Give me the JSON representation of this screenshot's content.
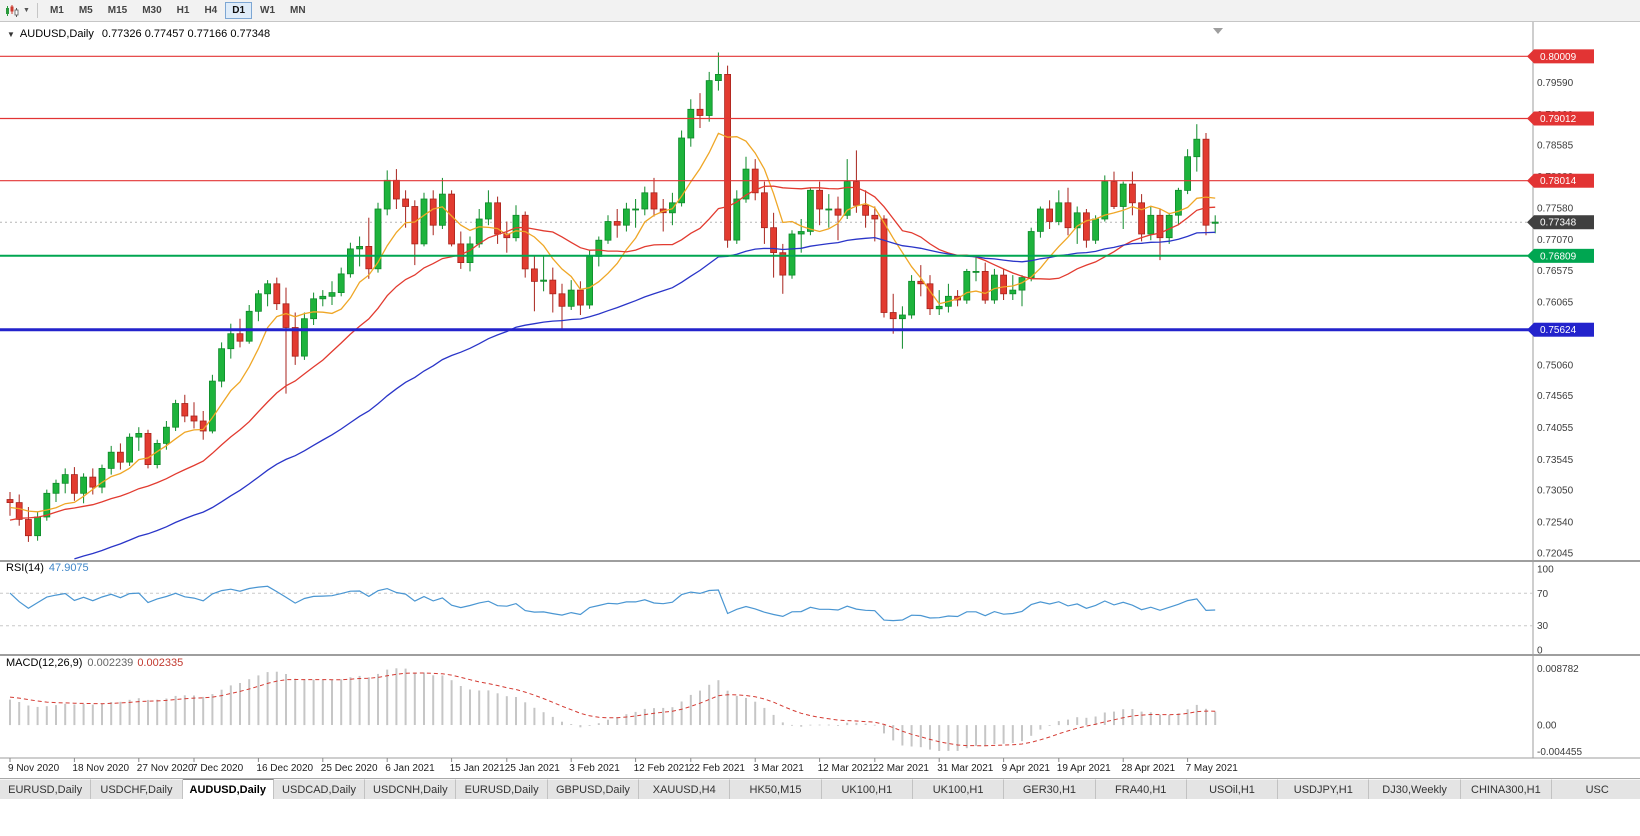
{
  "toolbar": {
    "timeframes": [
      "M1",
      "M5",
      "M15",
      "M30",
      "H1",
      "H4",
      "D1",
      "W1",
      "MN"
    ],
    "active_timeframe": "D1"
  },
  "chart": {
    "collapse_icon": "▼",
    "symbol_label": "AUDUSD,Daily",
    "ohlc_label": "0.77326 0.77457 0.77166 0.77348"
  },
  "rsi": {
    "label": "RSI(14)",
    "value": "47.9075",
    "axis_labels": [
      "100",
      "70",
      "30",
      "0"
    ],
    "levels": [
      70,
      30
    ],
    "line_color": "#4a96d2"
  },
  "macd": {
    "label": "MACD(12,26,9)",
    "value_main": "0.002239",
    "value_signal": "0.002335",
    "axis_top": "0.008782",
    "axis_zero": "0.00",
    "axis_bottom": "-0.004455",
    "hist_color": "#c6c6c6",
    "signal_color": "#d43b33"
  },
  "levels": [
    {
      "value": 0.80009,
      "label": "0.80009",
      "color": "#e23434",
      "width": 1.2
    },
    {
      "value": 0.79012,
      "label": "0.79012",
      "color": "#e23434",
      "width": 1.2
    },
    {
      "value": 0.78014,
      "label": "0.78014",
      "color": "#e23434",
      "width": 1.2
    },
    {
      "value": 0.76809,
      "label": "0.76809",
      "color": "#00a651",
      "width": 2
    },
    {
      "value": 0.75624,
      "label": "0.75624",
      "color": "#2323cc",
      "width": 3
    }
  ],
  "current_price": {
    "value": 0.77348,
    "label": "0.77348",
    "box_color": "#404040"
  },
  "price_axis": {
    "labels": [
      "0.79590",
      "0.79080",
      "0.78585",
      "0.78080",
      "0.77580",
      "0.77070",
      "0.76575",
      "0.76065",
      "0.75570",
      "0.75060",
      "0.74565",
      "0.74055",
      "0.73545",
      "0.73050",
      "0.72540",
      "0.72045"
    ]
  },
  "tabs": {
    "active_index": 2,
    "items": [
      "EURUSD,Daily",
      "USDCHF,Daily",
      "AUDUSD,Daily",
      "USDCAD,Daily",
      "USDCNH,Daily",
      "EURUSD,Daily",
      "GBPUSD,Daily",
      "XAUUSD,H4",
      "HK50,M15",
      "UK100,H1",
      "UK100,H1",
      "GER30,H1",
      "FRA40,H1",
      "USOil,H1",
      "USDJPY,H1",
      "DJ30,Weekly",
      "CHINA300,H1",
      "USC"
    ]
  },
  "chart_data": {
    "type": "candlestick",
    "symbol": "AUDUSD",
    "timeframe": "Daily",
    "price_range": [
      0.7193,
      0.8056
    ],
    "colors": {
      "bull": "#1db33c",
      "bull_border": "#0e8a2a",
      "bear": "#e23b30",
      "bear_border": "#a8231c"
    },
    "moving_averages": [
      {
        "period": 7,
        "type": "sma",
        "color": "#efa727"
      },
      {
        "period": 20,
        "type": "sma",
        "color": "#e23b30"
      },
      {
        "period": 55,
        "type": "ema",
        "color": "#2a35c8"
      }
    ],
    "rsi_period": 14,
    "macd_params": [
      12,
      26,
      9
    ],
    "macd_range": [
      -0.0045,
      0.0095
    ],
    "ma_seed": [
      0.704,
      0.702,
      0.7,
      0.701,
      0.703,
      0.705,
      0.707,
      0.706,
      0.704,
      0.706,
      0.708,
      0.71,
      0.709,
      0.707,
      0.709,
      0.711,
      0.713,
      0.715,
      0.716,
      0.717,
      0.718,
      0.72,
      0.722,
      0.724,
      0.723,
      0.722,
      0.724,
      0.726,
      0.727,
      0.726,
      0.725,
      0.726,
      0.727,
      0.728,
      0.727,
      0.726,
      0.727,
      0.728,
      0.729,
      0.7285
    ],
    "date_labels": [
      {
        "t": "9 Nov 2020",
        "i": 0
      },
      {
        "t": "18 Nov 2020",
        "i": 7
      },
      {
        "t": "27 Nov 2020",
        "i": 14
      },
      {
        "t": "7 Dec 2020",
        "i": 20
      },
      {
        "t": "16 Dec 2020",
        "i": 27
      },
      {
        "t": "25 Dec 2020",
        "i": 34
      },
      {
        "t": "6 Jan 2021",
        "i": 41
      },
      {
        "t": "15 Jan 2021",
        "i": 48
      },
      {
        "t": "25 Jan 2021",
        "i": 54
      },
      {
        "t": "3 Feb 2021",
        "i": 61
      },
      {
        "t": "12 Feb 2021",
        "i": 68
      },
      {
        "t": "22 Feb 2021",
        "i": 74
      },
      {
        "t": "3 Mar 2021",
        "i": 81
      },
      {
        "t": "12 Mar 2021",
        "i": 88
      },
      {
        "t": "22 Mar 2021",
        "i": 94
      },
      {
        "t": "31 Mar 2021",
        "i": 101
      },
      {
        "t": "9 Apr 2021",
        "i": 108
      },
      {
        "t": "19 Apr 2021",
        "i": 114
      },
      {
        "t": "28 Apr 2021",
        "i": 121
      },
      {
        "t": "7 May 2021",
        "i": 128
      }
    ],
    "candles": [
      [
        0.729,
        0.7302,
        0.7264,
        0.7285
      ],
      [
        0.7285,
        0.7298,
        0.7248,
        0.7258
      ],
      [
        0.7258,
        0.7278,
        0.7222,
        0.7232
      ],
      [
        0.7232,
        0.727,
        0.7224,
        0.7262
      ],
      [
        0.7262,
        0.7306,
        0.7256,
        0.73
      ],
      [
        0.73,
        0.7322,
        0.7286,
        0.7316
      ],
      [
        0.7316,
        0.734,
        0.73,
        0.733
      ],
      [
        0.733,
        0.7342,
        0.7288,
        0.73
      ],
      [
        0.73,
        0.7332,
        0.7284,
        0.7326
      ],
      [
        0.7326,
        0.734,
        0.7298,
        0.731
      ],
      [
        0.731,
        0.7346,
        0.73,
        0.734
      ],
      [
        0.734,
        0.7376,
        0.733,
        0.7366
      ],
      [
        0.7366,
        0.738,
        0.7338,
        0.735
      ],
      [
        0.735,
        0.7396,
        0.7344,
        0.739
      ],
      [
        0.739,
        0.7406,
        0.7368,
        0.7396
      ],
      [
        0.7396,
        0.7402,
        0.734,
        0.7346
      ],
      [
        0.7346,
        0.7386,
        0.734,
        0.738
      ],
      [
        0.738,
        0.7416,
        0.737,
        0.7406
      ],
      [
        0.7406,
        0.745,
        0.74,
        0.7444
      ],
      [
        0.7444,
        0.7458,
        0.7414,
        0.7424
      ],
      [
        0.7424,
        0.7446,
        0.7404,
        0.7416
      ],
      [
        0.7416,
        0.7432,
        0.7386,
        0.74
      ],
      [
        0.74,
        0.749,
        0.7396,
        0.748
      ],
      [
        0.748,
        0.7542,
        0.747,
        0.7532
      ],
      [
        0.7532,
        0.7572,
        0.7516,
        0.7556
      ],
      [
        0.7556,
        0.758,
        0.7534,
        0.7544
      ],
      [
        0.7544,
        0.7602,
        0.754,
        0.7592
      ],
      [
        0.7592,
        0.7626,
        0.7576,
        0.762
      ],
      [
        0.762,
        0.7642,
        0.76,
        0.7636
      ],
      [
        0.7636,
        0.7646,
        0.7594,
        0.7604
      ],
      [
        0.7604,
        0.763,
        0.746,
        0.7566
      ],
      [
        0.7566,
        0.759,
        0.7506,
        0.752
      ],
      [
        0.752,
        0.759,
        0.7514,
        0.758
      ],
      [
        0.758,
        0.7622,
        0.757,
        0.7612
      ],
      [
        0.7612,
        0.7626,
        0.76,
        0.7616
      ],
      [
        0.7616,
        0.764,
        0.7602,
        0.7622
      ],
      [
        0.7622,
        0.7662,
        0.7616,
        0.7652
      ],
      [
        0.7652,
        0.7702,
        0.7646,
        0.7692
      ],
      [
        0.7692,
        0.7712,
        0.7664,
        0.7696
      ],
      [
        0.7696,
        0.7742,
        0.7644,
        0.766
      ],
      [
        0.766,
        0.7766,
        0.7654,
        0.7756
      ],
      [
        0.7756,
        0.7818,
        0.7746,
        0.7802
      ],
      [
        0.7802,
        0.782,
        0.7756,
        0.7772
      ],
      [
        0.7772,
        0.7786,
        0.7726,
        0.776
      ],
      [
        0.776,
        0.777,
        0.7666,
        0.77
      ],
      [
        0.77,
        0.7782,
        0.7696,
        0.7772
      ],
      [
        0.7772,
        0.7786,
        0.7714,
        0.773
      ],
      [
        0.773,
        0.7806,
        0.7724,
        0.778
      ],
      [
        0.778,
        0.7786,
        0.7696,
        0.77
      ],
      [
        0.77,
        0.772,
        0.766,
        0.767
      ],
      [
        0.767,
        0.7712,
        0.7656,
        0.77
      ],
      [
        0.77,
        0.7756,
        0.7694,
        0.774
      ],
      [
        0.774,
        0.7786,
        0.773,
        0.7766
      ],
      [
        0.7766,
        0.7776,
        0.77,
        0.7716
      ],
      [
        0.7716,
        0.7736,
        0.7686,
        0.771
      ],
      [
        0.771,
        0.7762,
        0.7704,
        0.7746
      ],
      [
        0.7746,
        0.7752,
        0.7646,
        0.766
      ],
      [
        0.766,
        0.7682,
        0.7592,
        0.764
      ],
      [
        0.764,
        0.768,
        0.7624,
        0.7642
      ],
      [
        0.7642,
        0.7662,
        0.759,
        0.762
      ],
      [
        0.762,
        0.7636,
        0.7564,
        0.76
      ],
      [
        0.76,
        0.7642,
        0.7594,
        0.7626
      ],
      [
        0.7626,
        0.764,
        0.7586,
        0.7602
      ],
      [
        0.7602,
        0.769,
        0.7596,
        0.768
      ],
      [
        0.768,
        0.7712,
        0.7664,
        0.7706
      ],
      [
        0.7706,
        0.7746,
        0.77,
        0.7736
      ],
      [
        0.7736,
        0.7756,
        0.771,
        0.773
      ],
      [
        0.773,
        0.7766,
        0.772,
        0.7756
      ],
      [
        0.7756,
        0.7772,
        0.7726,
        0.7756
      ],
      [
        0.7756,
        0.7792,
        0.7746,
        0.7782
      ],
      [
        0.7782,
        0.7806,
        0.7744,
        0.7756
      ],
      [
        0.7756,
        0.7772,
        0.772,
        0.775
      ],
      [
        0.775,
        0.7782,
        0.773,
        0.7766
      ],
      [
        0.7766,
        0.7882,
        0.776,
        0.787
      ],
      [
        0.787,
        0.7932,
        0.7856,
        0.7916
      ],
      [
        0.7916,
        0.7942,
        0.7886,
        0.7906
      ],
      [
        0.7906,
        0.7976,
        0.7896,
        0.7962
      ],
      [
        0.7962,
        0.8007,
        0.7946,
        0.7972
      ],
      [
        0.7972,
        0.7986,
        0.7694,
        0.7706
      ],
      [
        0.7706,
        0.7786,
        0.77,
        0.7772
      ],
      [
        0.7772,
        0.784,
        0.7766,
        0.782
      ],
      [
        0.782,
        0.7836,
        0.777,
        0.7782
      ],
      [
        0.7782,
        0.78,
        0.77,
        0.7726
      ],
      [
        0.7726,
        0.775,
        0.7646,
        0.7686
      ],
      [
        0.7686,
        0.77,
        0.762,
        0.765
      ],
      [
        0.765,
        0.7722,
        0.7644,
        0.7716
      ],
      [
        0.7716,
        0.774,
        0.7686,
        0.772
      ],
      [
        0.772,
        0.779,
        0.7714,
        0.7786
      ],
      [
        0.7786,
        0.78,
        0.773,
        0.7756
      ],
      [
        0.7756,
        0.778,
        0.7726,
        0.7756
      ],
      [
        0.7756,
        0.7776,
        0.7706,
        0.7746
      ],
      [
        0.7746,
        0.7836,
        0.774,
        0.78
      ],
      [
        0.78,
        0.785,
        0.775,
        0.7762
      ],
      [
        0.7762,
        0.7786,
        0.7726,
        0.7746
      ],
      [
        0.7746,
        0.776,
        0.7704,
        0.774
      ],
      [
        0.774,
        0.7746,
        0.7582,
        0.759
      ],
      [
        0.759,
        0.762,
        0.7556,
        0.758
      ],
      [
        0.758,
        0.76,
        0.7532,
        0.7586
      ],
      [
        0.7586,
        0.765,
        0.758,
        0.764
      ],
      [
        0.764,
        0.7666,
        0.7616,
        0.7636
      ],
      [
        0.7636,
        0.765,
        0.7586,
        0.7596
      ],
      [
        0.7596,
        0.7626,
        0.7586,
        0.76
      ],
      [
        0.76,
        0.7636,
        0.759,
        0.7616
      ],
      [
        0.7616,
        0.7626,
        0.76,
        0.761
      ],
      [
        0.761,
        0.766,
        0.7604,
        0.7656
      ],
      [
        0.7656,
        0.768,
        0.764,
        0.7656
      ],
      [
        0.7656,
        0.767,
        0.7604,
        0.761
      ],
      [
        0.761,
        0.766,
        0.7604,
        0.765
      ],
      [
        0.765,
        0.766,
        0.761,
        0.762
      ],
      [
        0.762,
        0.765,
        0.761,
        0.7626
      ],
      [
        0.7626,
        0.765,
        0.76,
        0.7646
      ],
      [
        0.7646,
        0.7726,
        0.764,
        0.772
      ],
      [
        0.772,
        0.776,
        0.771,
        0.7756
      ],
      [
        0.7756,
        0.777,
        0.7724,
        0.7736
      ],
      [
        0.7736,
        0.7786,
        0.773,
        0.7766
      ],
      [
        0.7766,
        0.779,
        0.7714,
        0.7726
      ],
      [
        0.7726,
        0.776,
        0.77,
        0.775
      ],
      [
        0.775,
        0.7756,
        0.7694,
        0.7706
      ],
      [
        0.7706,
        0.7746,
        0.77,
        0.774
      ],
      [
        0.774,
        0.781,
        0.7736,
        0.78
      ],
      [
        0.78,
        0.7816,
        0.7756,
        0.776
      ],
      [
        0.776,
        0.78,
        0.7724,
        0.7796
      ],
      [
        0.7796,
        0.7816,
        0.7746,
        0.7766
      ],
      [
        0.7766,
        0.778,
        0.7704,
        0.7716
      ],
      [
        0.7716,
        0.776,
        0.7706,
        0.7746
      ],
      [
        0.7746,
        0.7756,
        0.7674,
        0.771
      ],
      [
        0.771,
        0.775,
        0.77,
        0.7746
      ],
      [
        0.7746,
        0.779,
        0.773,
        0.7786
      ],
      [
        0.7786,
        0.7852,
        0.778,
        0.784
      ],
      [
        0.784,
        0.7892,
        0.7816,
        0.7868
      ],
      [
        0.7868,
        0.7878,
        0.7714,
        0.773
      ],
      [
        0.7733,
        0.7746,
        0.7717,
        0.7735
      ]
    ]
  }
}
